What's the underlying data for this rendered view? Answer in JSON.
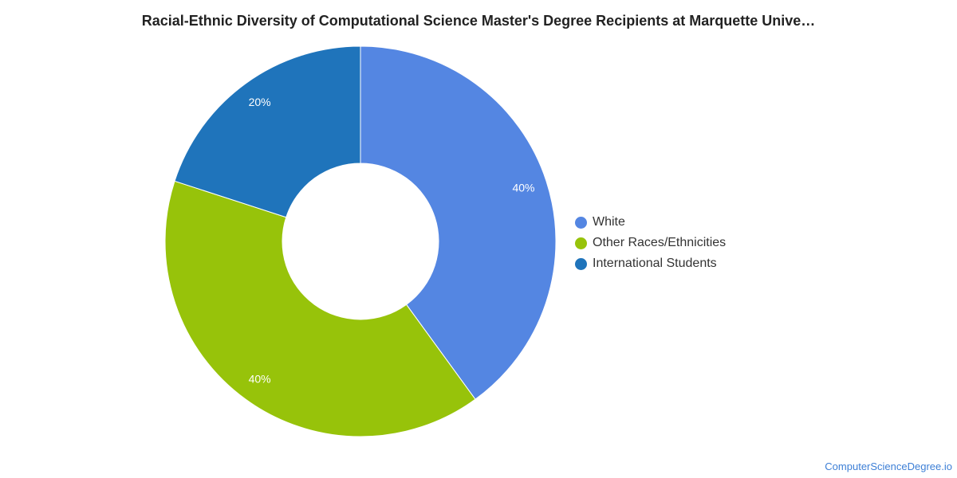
{
  "title": "Racial-Ethnic Diversity of Computational Science Master's Degree Recipients at Marquette Unive…",
  "source": "ComputerScienceDegree.io",
  "chart_data": {
    "type": "pie",
    "variant": "donut",
    "title": "Racial-Ethnic Diversity of Computational Science Master's Degree Recipients at Marquette Unive…",
    "legend_position": "right",
    "slices": [
      {
        "label": "White",
        "value": 40,
        "display": "40%",
        "color": "#5486e2"
      },
      {
        "label": "Other Races/Ethnicities",
        "value": 40,
        "display": "40%",
        "color": "#97c30a"
      },
      {
        "label": "International Students",
        "value": 20,
        "display": "20%",
        "color": "#1f74bb"
      }
    ]
  }
}
